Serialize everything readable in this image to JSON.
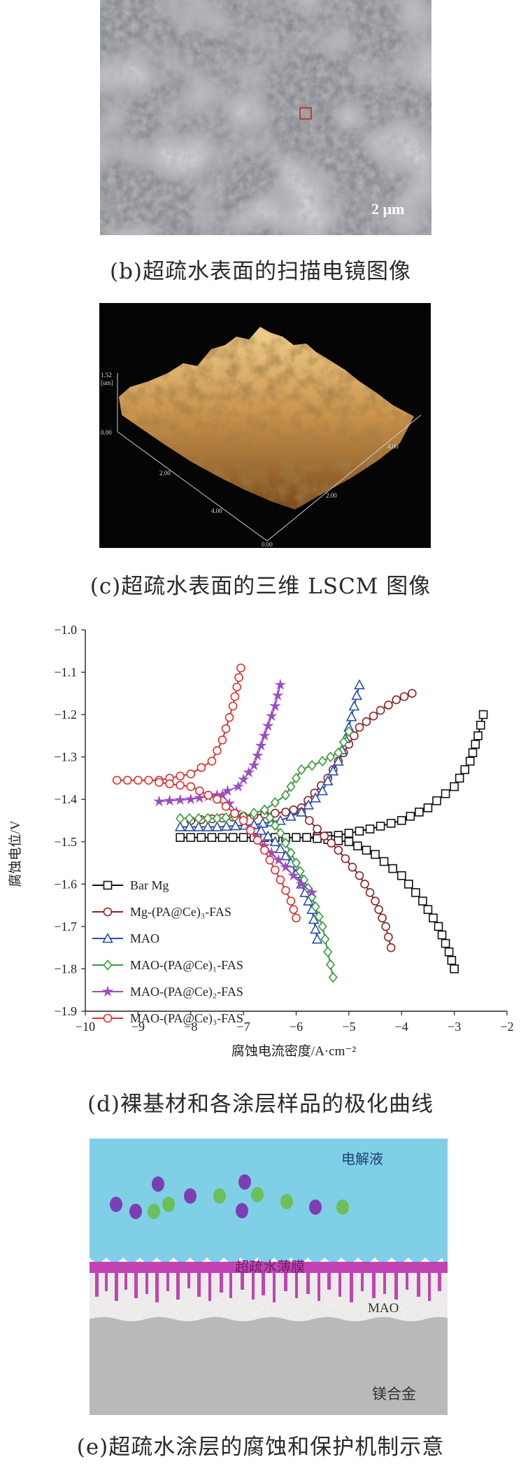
{
  "sem": {
    "scale_label": "2 μm",
    "caption": "(b)超疏水表面的扫描电镜图像"
  },
  "lscm": {
    "z_max_label": "1.52",
    "z_unit_label": "[um]",
    "z_min_label": "0.00",
    "x_ticks": [
      "2.00",
      "4.00"
    ],
    "x_origin_label": "0.00",
    "y_ticks": [
      "2.00",
      "4.00"
    ],
    "caption": "(c)超疏水表面的三维 LSCM 图像"
  },
  "chart": {
    "caption": "(d)裸基材和各涂层样品的极化曲线"
  },
  "chart_data": {
    "type": "line",
    "xlabel": "腐蚀电流密度/A·cm⁻²",
    "ylabel": "腐蚀电位/V",
    "xlim": [
      -10,
      -2
    ],
    "ylim": [
      -1.9,
      -1.0
    ],
    "y_reversed": true,
    "x_ticks": [
      -10,
      -9,
      -8,
      -7,
      -6,
      -5,
      -4,
      -3,
      -2
    ],
    "y_ticks": [
      -1.0,
      -1.1,
      -1.2,
      -1.3,
      -1.4,
      -1.5,
      -1.6,
      -1.7,
      -1.8,
      -1.9
    ],
    "x_tick_labels": [
      "−10",
      "−9",
      "−8",
      "−7",
      "−6",
      "−5",
      "−4",
      "−3",
      "−2"
    ],
    "y_tick_labels": [
      "−1.0",
      "−1.1",
      "−1.2",
      "−1.3",
      "−1.4",
      "−1.5",
      "−1.6",
      "−1.7",
      "−1.8",
      "−1.9"
    ],
    "legend_position": "bottom-left",
    "series": [
      {
        "name": "Bar Mg",
        "marker": "square",
        "color": "#111111",
        "anodic": [
          [
            -8.2,
            -1.49
          ],
          [
            -7,
            -1.49
          ],
          [
            -5.8,
            -1.49
          ],
          [
            -5.2,
            -1.485
          ],
          [
            -4.6,
            -1.47
          ],
          [
            -4,
            -1.45
          ],
          [
            -3.5,
            -1.42
          ],
          [
            -3,
            -1.37
          ],
          [
            -2.7,
            -1.31
          ],
          [
            -2.55,
            -1.25
          ],
          [
            -2.45,
            -1.2
          ]
        ],
        "cathodic": [
          [
            -5.8,
            -1.49
          ],
          [
            -5,
            -1.5
          ],
          [
            -4.5,
            -1.53
          ],
          [
            -4,
            -1.58
          ],
          [
            -3.6,
            -1.64
          ],
          [
            -3.3,
            -1.7
          ],
          [
            -3.1,
            -1.76
          ],
          [
            -3,
            -1.8
          ]
        ]
      },
      {
        "name": "Mg-(PA@Ce)₃-FAS",
        "marker": "circle",
        "color": "#8b2323",
        "anodic": [
          [
            -8.0,
            -1.45
          ],
          [
            -7,
            -1.44
          ],
          [
            -6.2,
            -1.43
          ],
          [
            -5.9,
            -1.42
          ],
          [
            -5.4,
            -1.35
          ],
          [
            -5.1,
            -1.29
          ],
          [
            -4.8,
            -1.23
          ],
          [
            -4.4,
            -1.19
          ],
          [
            -4.1,
            -1.165
          ],
          [
            -3.8,
            -1.15
          ]
        ],
        "cathodic": [
          [
            -5.9,
            -1.43
          ],
          [
            -5.6,
            -1.47
          ],
          [
            -5.2,
            -1.52
          ],
          [
            -4.8,
            -1.58
          ],
          [
            -4.5,
            -1.64
          ],
          [
            -4.3,
            -1.7
          ],
          [
            -4.2,
            -1.75
          ]
        ]
      },
      {
        "name": "MAO",
        "marker": "triangle",
        "color": "#2a4fa8",
        "anodic": [
          [
            -8.2,
            -1.465
          ],
          [
            -7.5,
            -1.465
          ],
          [
            -6.8,
            -1.46
          ],
          [
            -6.3,
            -1.45
          ],
          [
            -5.9,
            -1.43
          ],
          [
            -5.5,
            -1.38
          ],
          [
            -5.2,
            -1.31
          ],
          [
            -5,
            -1.23
          ],
          [
            -4.8,
            -1.13
          ]
        ],
        "cathodic": [
          [
            -6.8,
            -1.46
          ],
          [
            -6.4,
            -1.5
          ],
          [
            -6.1,
            -1.55
          ],
          [
            -5.9,
            -1.6
          ],
          [
            -5.7,
            -1.66
          ],
          [
            -5.6,
            -1.73
          ]
        ]
      },
      {
        "name": "MAO-(PA@Ce)₁-FAS",
        "marker": "diamond",
        "color": "#3a9a3a",
        "anodic": [
          [
            -8.2,
            -1.445
          ],
          [
            -7.5,
            -1.445
          ],
          [
            -7,
            -1.44
          ],
          [
            -6.6,
            -1.425
          ],
          [
            -6.2,
            -1.39
          ],
          [
            -5.9,
            -1.33
          ],
          [
            -5.5,
            -1.31
          ],
          [
            -5.2,
            -1.29
          ],
          [
            -5,
            -1.24
          ]
        ],
        "cathodic": [
          [
            -6.6,
            -1.425
          ],
          [
            -6.3,
            -1.48
          ],
          [
            -6,
            -1.55
          ],
          [
            -5.7,
            -1.63
          ],
          [
            -5.5,
            -1.7
          ],
          [
            -5.4,
            -1.76
          ],
          [
            -5.3,
            -1.82
          ]
        ]
      },
      {
        "name": "MAO-(PA@Ce)₂-FAS",
        "marker": "star",
        "color": "#9b4dc1",
        "anodic": [
          [
            -8.6,
            -1.405
          ],
          [
            -8,
            -1.4
          ],
          [
            -7.5,
            -1.39
          ],
          [
            -7.1,
            -1.37
          ],
          [
            -6.8,
            -1.32
          ],
          [
            -6.6,
            -1.25
          ],
          [
            -6.4,
            -1.18
          ],
          [
            -6.3,
            -1.13
          ]
        ],
        "cathodic": [
          [
            -7.4,
            -1.39
          ],
          [
            -7,
            -1.45
          ],
          [
            -6.6,
            -1.51
          ],
          [
            -6.2,
            -1.56
          ],
          [
            -5.9,
            -1.6
          ],
          [
            -5.7,
            -1.62
          ]
        ]
      },
      {
        "name": "MAO-(PA@Ce)₃-FAS",
        "marker": "circle-open",
        "color": "#e03030",
        "anodic": [
          [
            -9.4,
            -1.355
          ],
          [
            -8.6,
            -1.355
          ],
          [
            -8,
            -1.34
          ],
          [
            -7.6,
            -1.31
          ],
          [
            -7.4,
            -1.26
          ],
          [
            -7.2,
            -1.18
          ],
          [
            -7.05,
            -1.09
          ]
        ],
        "cathodic": [
          [
            -8.6,
            -1.36
          ],
          [
            -8,
            -1.37
          ],
          [
            -7.5,
            -1.4
          ],
          [
            -7,
            -1.45
          ],
          [
            -6.6,
            -1.52
          ],
          [
            -6.3,
            -1.59
          ],
          [
            -6.1,
            -1.64
          ],
          [
            -6,
            -1.68
          ]
        ]
      }
    ]
  },
  "schematic": {
    "electrolyte_label": "电解液",
    "film_label": "超疏水薄膜",
    "mao_label": "MAO",
    "alloy_label": "镁合金",
    "caption": "(e)超疏水涂层的腐蚀和保护机制示意"
  }
}
